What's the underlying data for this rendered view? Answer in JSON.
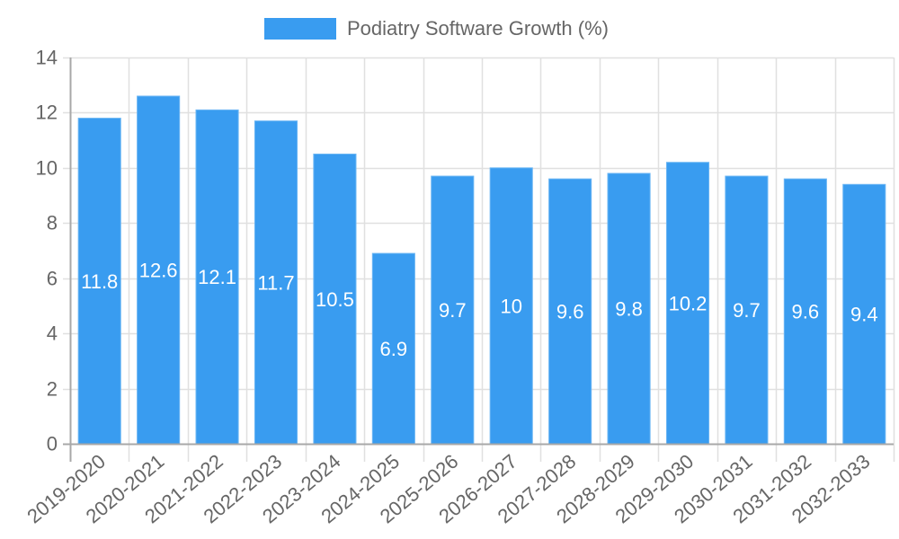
{
  "legend": {
    "label": "Podiatry Software Growth (%)",
    "color": "#399cf0"
  },
  "colors": {
    "bar": "#399cf0",
    "bar_border": "#6bb6f4",
    "grid": "#e0e0e0",
    "axis": "#a8a8a8",
    "tick_text": "#666666",
    "data_label": "#ffffff"
  },
  "chart_data": {
    "type": "bar",
    "title": "",
    "xlabel": "",
    "ylabel": "",
    "categories": [
      "2019-2020",
      "2020-2021",
      "2021-2022",
      "2022-2023",
      "2023-2024",
      "2024-2025",
      "2025-2026",
      "2026-2027",
      "2027-2028",
      "2028-2029",
      "2029-2030",
      "2030-2031",
      "2031-2032",
      "2032-2033"
    ],
    "series": [
      {
        "name": "Podiatry Software Growth (%)",
        "values": [
          11.8,
          12.6,
          12.1,
          11.7,
          10.5,
          6.9,
          9.7,
          10,
          9.6,
          9.8,
          10.2,
          9.7,
          9.6,
          9.4
        ]
      }
    ],
    "ylim": [
      0,
      14
    ],
    "yticks": [
      0,
      2,
      4,
      6,
      8,
      10,
      12,
      14
    ],
    "grid": true,
    "legend_position": "top",
    "data_labels": [
      "11.8",
      "12.6",
      "12.1",
      "11.7",
      "10.5",
      "6.9",
      "9.7",
      "10",
      "9.6",
      "9.8",
      "10.2",
      "9.7",
      "9.6",
      "9.4"
    ]
  }
}
